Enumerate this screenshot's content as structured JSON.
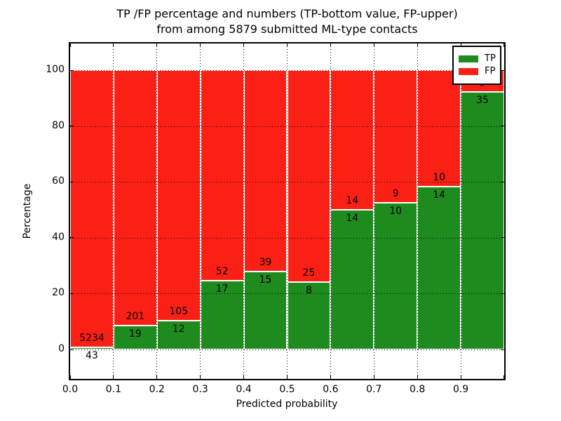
{
  "chart_data": {
    "type": "bar",
    "stacked": true,
    "title_line1": "TP /FP percentage and numbers (TP-bottom value, FP-upper)",
    "title_line2": "from among 5879 submitted ML-type contacts",
    "xlabel": "Predicted probability",
    "ylabel": "Percentage",
    "x_tick_labels": [
      "0.0",
      "0.1",
      "0.2",
      "0.3",
      "0.4",
      "0.5",
      "0.6",
      "0.7",
      "0.8",
      "0.9"
    ],
    "y_tick_labels": [
      "0",
      "20",
      "40",
      "60",
      "80",
      "100"
    ],
    "y_ticks": [
      0,
      20,
      40,
      60,
      80,
      100
    ],
    "xlim": [
      0.0,
      1.0
    ],
    "ylim": [
      -10.5,
      109.5
    ],
    "grid_style": "dotted",
    "categories": [
      "0.0-0.1",
      "0.1-0.2",
      "0.2-0.3",
      "0.3-0.4",
      "0.4-0.5",
      "0.5-0.6",
      "0.6-0.7",
      "0.7-0.8",
      "0.8-0.9",
      "0.9-1.0"
    ],
    "series": [
      {
        "name": "TP",
        "color": "#1e8b1e",
        "counts": [
          43,
          19,
          12,
          17,
          15,
          8,
          14,
          10,
          14,
          35
        ],
        "percent": [
          0.81,
          8.64,
          10.26,
          24.64,
          27.78,
          24.24,
          50.0,
          52.63,
          58.33,
          92.11
        ]
      },
      {
        "name": "FP",
        "color": "#fb2016",
        "counts": [
          5234,
          201,
          105,
          52,
          39,
          25,
          14,
          9,
          10,
          3
        ],
        "percent": [
          99.19,
          91.36,
          89.74,
          75.36,
          72.22,
          75.76,
          50.0,
          47.37,
          41.67,
          7.89
        ]
      }
    ],
    "legend": {
      "position": "upper right",
      "entries": [
        {
          "label": "TP",
          "color": "#1e8b1e"
        },
        {
          "label": "FP",
          "color": "#fb2016"
        }
      ]
    }
  }
}
